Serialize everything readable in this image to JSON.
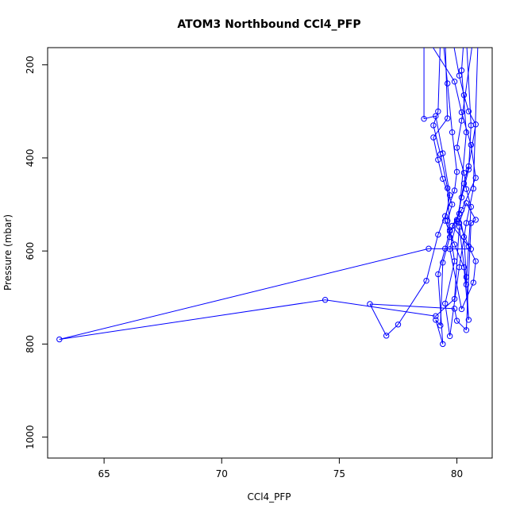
{
  "chart_data": {
    "type": "line",
    "title": "ATOM3 Northbound CCl4_PFP",
    "xlabel": "CCl4_PFP",
    "ylabel": "Pressure (mbar)",
    "xlim": [
      62.6,
      81.5
    ],
    "ylim": [
      1045,
      163
    ],
    "y_inverted": true,
    "grid": false,
    "legend": "none",
    "markers": "open circles connected by lines",
    "color": "#0000ff",
    "xticks": [
      65,
      70,
      75,
      80
    ],
    "yticks": [
      200,
      400,
      600,
      800,
      1000
    ],
    "series": [
      {
        "points": [
          [
            78.7,
            140
          ],
          [
            79.9,
            236
          ],
          [
            80.2,
            302
          ],
          [
            80.6,
            372
          ],
          [
            80.8,
            443
          ],
          [
            80.2,
            512
          ],
          [
            79.8,
            546
          ],
          [
            80.6,
            596
          ],
          [
            78.8,
            595
          ],
          [
            63.1,
            790
          ],
          [
            74.4,
            705
          ],
          [
            79.1,
            740
          ],
          [
            79.9,
            703
          ],
          [
            80.1,
            548
          ],
          [
            80.4,
            672
          ],
          [
            80.6,
            505
          ],
          [
            80.4,
            467
          ],
          [
            80.3,
            432
          ],
          [
            80.0,
            378
          ],
          [
            80.2,
            320
          ],
          [
            80.7,
            140
          ],
          [
            79.5,
            140
          ],
          [
            79.6,
            315
          ],
          [
            79.0,
            356
          ],
          [
            79.2,
            404
          ],
          [
            79.4,
            445
          ],
          [
            79.8,
            500
          ],
          [
            79.6,
            535
          ],
          [
            79.7,
            570
          ],
          [
            79.4,
            625
          ],
          [
            79.3,
            760
          ],
          [
            79.1,
            748
          ],
          [
            79.4,
            800
          ],
          [
            79.2,
            650
          ],
          [
            79.5,
            595
          ],
          [
            79.7,
            558
          ],
          [
            80.0,
            533
          ],
          [
            80.2,
            485
          ],
          [
            80.5,
            425
          ],
          [
            80.6,
            330
          ],
          [
            80.4,
            140
          ],
          [
            79.8,
            140
          ],
          [
            80.1,
            223
          ],
          [
            80.3,
            265
          ],
          [
            80.5,
            300
          ],
          [
            80.8,
            328
          ],
          [
            80.5,
            418
          ],
          [
            80.3,
            455
          ],
          [
            80.0,
            536
          ],
          [
            79.7,
            596
          ],
          [
            80.2,
            725
          ],
          [
            80.7,
            668
          ],
          [
            80.8,
            622
          ],
          [
            80.5,
            590
          ],
          [
            80.1,
            540
          ],
          [
            80.4,
            497
          ],
          [
            80.8,
            533
          ],
          [
            80.6,
            540
          ],
          [
            80.4,
            770
          ],
          [
            80.0,
            750
          ],
          [
            79.9,
            724
          ],
          [
            76.3,
            714
          ],
          [
            77.0,
            782
          ],
          [
            77.5,
            758
          ],
          [
            78.7,
            664
          ],
          [
            79.2,
            565
          ],
          [
            79.5,
            525
          ],
          [
            79.9,
            470
          ],
          [
            80.0,
            430
          ],
          [
            79.8,
            345
          ],
          [
            79.6,
            240
          ],
          [
            79.4,
            140
          ],
          [
            78.6,
            140
          ],
          [
            78.6,
            316
          ],
          [
            79.1,
            310
          ],
          [
            79.4,
            390
          ],
          [
            79.7,
            480
          ],
          [
            79.5,
            535
          ],
          [
            79.9,
            586
          ],
          [
            80.3,
            635
          ],
          [
            80.5,
            748
          ],
          [
            80.4,
            656
          ],
          [
            80.3,
            570
          ],
          [
            80.1,
            520
          ],
          [
            80.4,
            345
          ],
          [
            80.2,
            212
          ],
          [
            80.3,
            140
          ],
          [
            79.3,
            140
          ],
          [
            79.2,
            300
          ],
          [
            79.0,
            330
          ],
          [
            79.3,
            392
          ],
          [
            79.6,
            465
          ],
          [
            79.7,
            555
          ],
          [
            79.9,
            622
          ],
          [
            79.5,
            713
          ],
          [
            79.7,
            783
          ],
          [
            80.1,
            635
          ],
          [
            80.4,
            540
          ],
          [
            80.7,
            466
          ],
          [
            80.9,
            140
          ]
        ]
      }
    ]
  }
}
